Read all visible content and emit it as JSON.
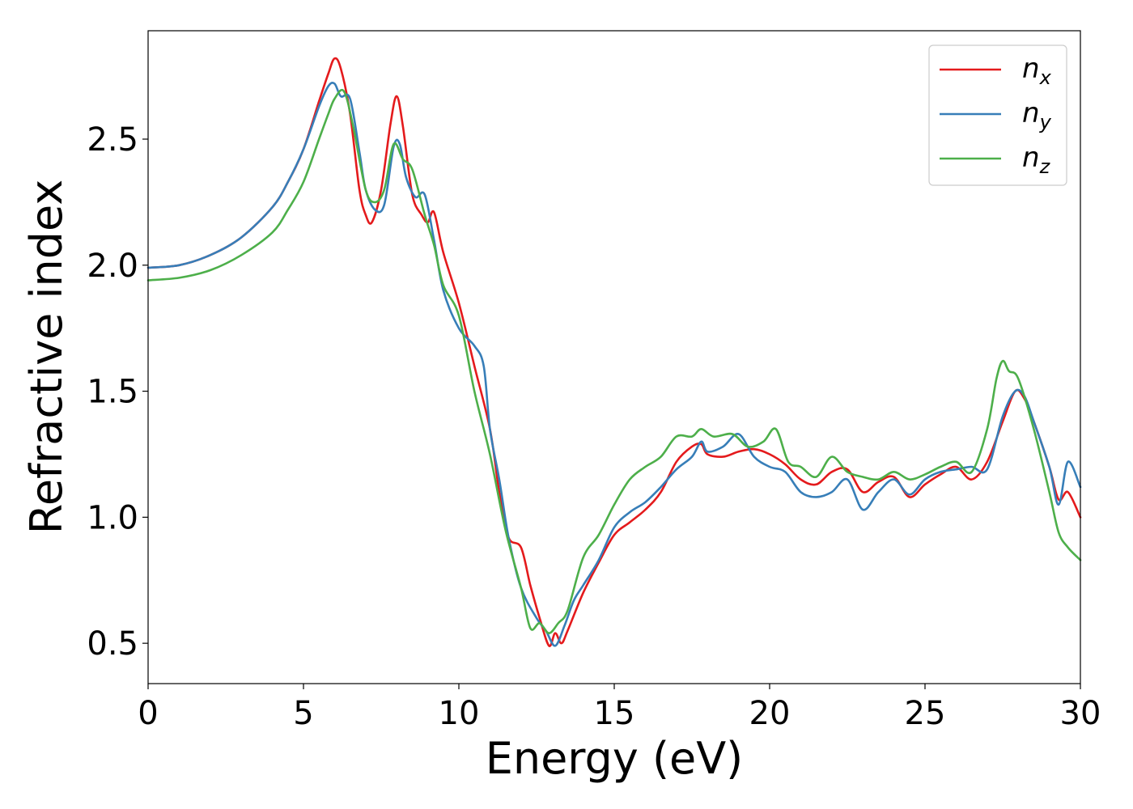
{
  "chart_data": {
    "type": "line",
    "xlabel": "Energy (eV)",
    "ylabel": "Refractive index",
    "xlim": [
      0,
      30
    ],
    "ylim": [
      0.34,
      2.93
    ],
    "xticks": [
      0,
      5,
      10,
      15,
      20,
      25,
      30
    ],
    "xtick_labels": [
      "0",
      "5",
      "10",
      "15",
      "20",
      "25",
      "30"
    ],
    "yticks": [
      0.5,
      1.0,
      1.5,
      2.0,
      2.5
    ],
    "ytick_labels": [
      "0.5",
      "1.0",
      "1.5",
      "2.0",
      "2.5"
    ],
    "grid": false,
    "legend_position": "top-right",
    "series": [
      {
        "name": "n",
        "subscript": "x",
        "color": "#e41a1c",
        "x": [
          0,
          1,
          2,
          3,
          4,
          4.5,
          5,
          5.5,
          5.8,
          6.0,
          6.2,
          6.5,
          6.8,
          7.0,
          7.2,
          7.5,
          7.8,
          8.0,
          8.2,
          8.5,
          8.8,
          9.0,
          9.2,
          9.5,
          10.0,
          10.5,
          11.0,
          11.3,
          11.6,
          12.0,
          12.3,
          12.6,
          12.9,
          13.1,
          13.3,
          13.5,
          14.0,
          14.5,
          15.0,
          15.5,
          16.0,
          16.5,
          17.0,
          17.5,
          17.8,
          18.0,
          18.5,
          19.0,
          19.5,
          20.0,
          20.5,
          21.0,
          21.5,
          22.0,
          22.5,
          23.0,
          23.5,
          24.0,
          24.5,
          25.0,
          25.5,
          26.0,
          26.5,
          27.0,
          27.5,
          27.9,
          28.2,
          28.5,
          29.0,
          29.3,
          29.6,
          30.0
        ],
        "y": [
          1.99,
          2.0,
          2.04,
          2.11,
          2.23,
          2.33,
          2.46,
          2.65,
          2.76,
          2.82,
          2.78,
          2.6,
          2.3,
          2.2,
          2.17,
          2.3,
          2.56,
          2.67,
          2.55,
          2.28,
          2.2,
          2.17,
          2.21,
          2.05,
          1.85,
          1.6,
          1.35,
          1.1,
          0.92,
          0.88,
          0.73,
          0.6,
          0.49,
          0.54,
          0.5,
          0.55,
          0.7,
          0.82,
          0.93,
          0.98,
          1.03,
          1.1,
          1.22,
          1.28,
          1.29,
          1.25,
          1.24,
          1.26,
          1.27,
          1.25,
          1.21,
          1.15,
          1.13,
          1.18,
          1.19,
          1.1,
          1.14,
          1.16,
          1.08,
          1.13,
          1.17,
          1.2,
          1.15,
          1.22,
          1.38,
          1.5,
          1.47,
          1.38,
          1.2,
          1.07,
          1.1,
          1.0
        ]
      },
      {
        "name": "n",
        "subscript": "y",
        "color": "#377eb8",
        "x": [
          0,
          1,
          2,
          3,
          4,
          4.5,
          5,
          5.5,
          5.8,
          6.0,
          6.2,
          6.5,
          6.8,
          7.0,
          7.3,
          7.6,
          7.9,
          8.1,
          8.3,
          8.6,
          8.9,
          9.2,
          9.5,
          10.0,
          10.5,
          10.8,
          11.0,
          11.3,
          11.6,
          12.0,
          12.5,
          12.8,
          13.1,
          13.4,
          13.7,
          14.0,
          14.5,
          15.0,
          15.5,
          16.0,
          16.5,
          17.0,
          17.5,
          17.8,
          18.0,
          18.5,
          19.0,
          19.5,
          20.0,
          20.5,
          21.0,
          21.5,
          22.0,
          22.5,
          23.0,
          23.5,
          24.0,
          24.5,
          25.0,
          25.5,
          26.0,
          26.5,
          27.0,
          27.5,
          27.9,
          28.2,
          28.5,
          29.0,
          29.3,
          29.6,
          30.0
        ],
        "y": [
          1.99,
          2.0,
          2.04,
          2.11,
          2.23,
          2.33,
          2.46,
          2.63,
          2.71,
          2.72,
          2.67,
          2.66,
          2.45,
          2.3,
          2.22,
          2.24,
          2.47,
          2.48,
          2.35,
          2.27,
          2.28,
          2.1,
          1.9,
          1.75,
          1.68,
          1.6,
          1.35,
          1.15,
          0.92,
          0.72,
          0.6,
          0.55,
          0.49,
          0.57,
          0.67,
          0.73,
          0.83,
          0.96,
          1.02,
          1.06,
          1.12,
          1.19,
          1.24,
          1.3,
          1.26,
          1.28,
          1.33,
          1.24,
          1.2,
          1.18,
          1.1,
          1.08,
          1.1,
          1.15,
          1.03,
          1.1,
          1.15,
          1.09,
          1.15,
          1.18,
          1.19,
          1.2,
          1.19,
          1.4,
          1.5,
          1.48,
          1.38,
          1.2,
          1.05,
          1.22,
          1.12
        ]
      },
      {
        "name": "n",
        "subscript": "z",
        "color": "#4daf4a",
        "x": [
          0,
          1,
          2,
          3,
          4,
          4.5,
          5,
          5.5,
          5.8,
          6.0,
          6.3,
          6.6,
          7.0,
          7.3,
          7.6,
          7.9,
          8.2,
          8.5,
          8.9,
          9.2,
          9.5,
          10.0,
          10.5,
          11.0,
          11.5,
          12.0,
          12.3,
          12.6,
          12.9,
          13.2,
          13.5,
          14.0,
          14.5,
          15.0,
          15.5,
          16.0,
          16.5,
          17.0,
          17.5,
          17.8,
          18.2,
          18.8,
          19.3,
          19.8,
          20.2,
          20.6,
          21.0,
          21.5,
          22.0,
          22.5,
          23.0,
          23.5,
          24.0,
          24.5,
          25.0,
          25.5,
          26.0,
          26.5,
          27.0,
          27.3,
          27.5,
          27.7,
          28.0,
          28.5,
          29.0,
          29.3,
          29.6,
          30.0
        ],
        "y": [
          1.94,
          1.95,
          1.98,
          2.04,
          2.13,
          2.22,
          2.33,
          2.5,
          2.6,
          2.66,
          2.69,
          2.55,
          2.3,
          2.25,
          2.3,
          2.48,
          2.42,
          2.38,
          2.2,
          2.08,
          1.92,
          1.8,
          1.5,
          1.25,
          0.95,
          0.72,
          0.56,
          0.58,
          0.54,
          0.58,
          0.63,
          0.84,
          0.93,
          1.05,
          1.15,
          1.2,
          1.24,
          1.32,
          1.32,
          1.35,
          1.32,
          1.33,
          1.28,
          1.3,
          1.35,
          1.22,
          1.2,
          1.16,
          1.24,
          1.18,
          1.16,
          1.15,
          1.18,
          1.15,
          1.17,
          1.2,
          1.22,
          1.18,
          1.35,
          1.55,
          1.62,
          1.58,
          1.55,
          1.35,
          1.1,
          0.94,
          0.88,
          0.83
        ]
      }
    ]
  }
}
